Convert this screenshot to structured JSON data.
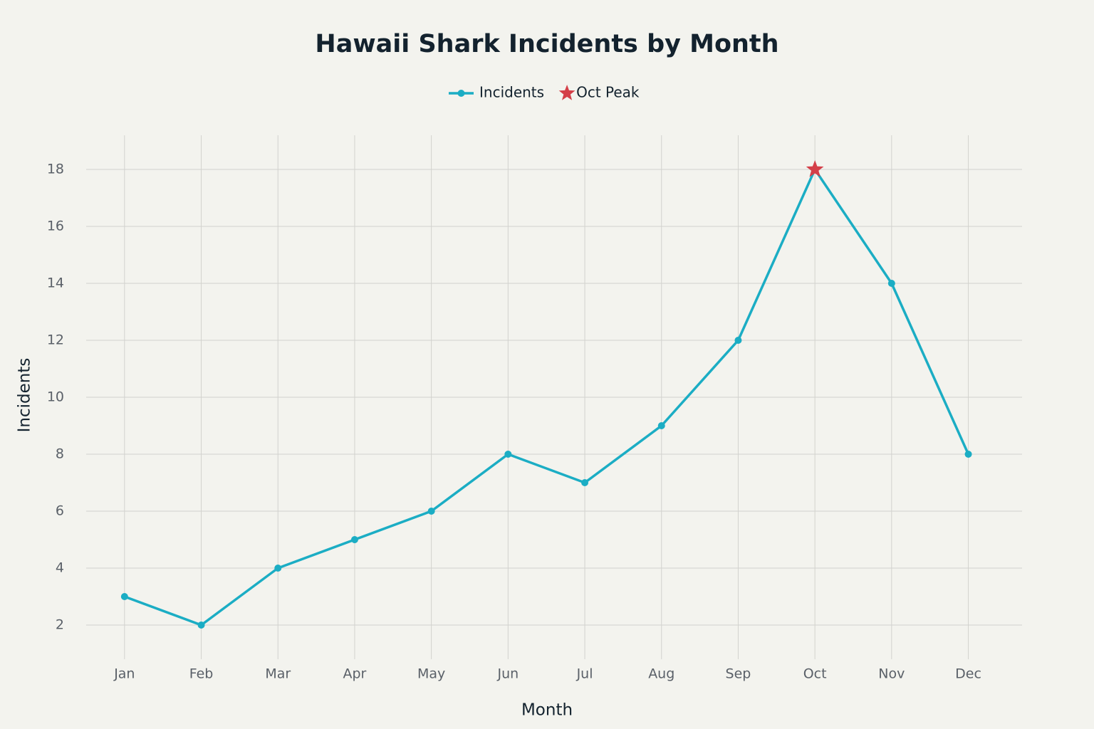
{
  "chart_data": {
    "type": "line",
    "title": "Hawaii Shark Incidents by Month",
    "x_label": "Month",
    "y_label": "Incidents",
    "categories": [
      "Jan",
      "Feb",
      "Mar",
      "Apr",
      "May",
      "Jun",
      "Jul",
      "Aug",
      "Sep",
      "Oct",
      "Nov",
      "Dec"
    ],
    "series": [
      {
        "name": "Incidents",
        "color": "#1badc4",
        "mode": "lines+markers",
        "symbol": "circle",
        "values": [
          3,
          2,
          4,
          5,
          6,
          8,
          7,
          9,
          12,
          18,
          14,
          8
        ]
      },
      {
        "name": "Oct Peak",
        "color": "#d43f48",
        "mode": "markers",
        "symbol": "star",
        "values": [
          null,
          null,
          null,
          null,
          null,
          null,
          null,
          null,
          null,
          18,
          null,
          null
        ]
      }
    ],
    "ylim": [
      0.8,
      19.2
    ],
    "yticks": [
      2,
      4,
      6,
      8,
      10,
      12,
      14,
      16,
      18
    ],
    "grid": true,
    "legend": "top"
  }
}
